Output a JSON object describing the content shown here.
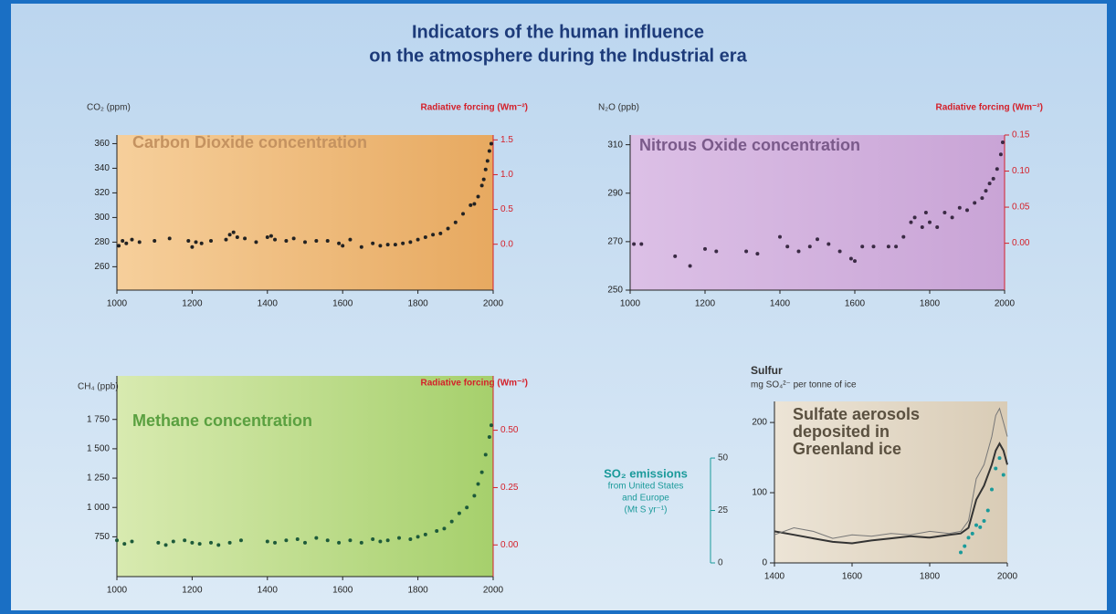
{
  "title": [
    "Indicators of the human influence",
    "on the atmosphere during the Industrial era"
  ],
  "chart_data": [
    {
      "type": "scatter",
      "title": "Carbon Dioxide concentration",
      "y_label": "CO₂ (ppm)",
      "y2_label": "Radiative forcing (Wm⁻²)",
      "x": [
        1005,
        1015,
        1025,
        1040,
        1060,
        1100,
        1140,
        1190,
        1200,
        1210,
        1225,
        1250,
        1290,
        1300,
        1310,
        1320,
        1340,
        1370,
        1400,
        1410,
        1420,
        1450,
        1470,
        1500,
        1530,
        1560,
        1590,
        1600,
        1620,
        1650,
        1680,
        1700,
        1720,
        1740,
        1760,
        1780,
        1800,
        1820,
        1840,
        1860,
        1880,
        1900,
        1920,
        1940,
        1950,
        1960,
        1970,
        1975,
        1980,
        1985,
        1990,
        1995
      ],
      "values": [
        277,
        281,
        279,
        282,
        280,
        281,
        283,
        281,
        276,
        280,
        279,
        281,
        282,
        286,
        288,
        284,
        283,
        280,
        284,
        285,
        282,
        281,
        283,
        280,
        281,
        281,
        279,
        277,
        282,
        276,
        279,
        277,
        278,
        278,
        279,
        280,
        282,
        284,
        286,
        287,
        291,
        296,
        303,
        310,
        311,
        317,
        326,
        331,
        339,
        346,
        354,
        360
      ],
      "color": "#222222",
      "xlim": [
        1000,
        2000
      ],
      "xticks": [
        1000,
        1200,
        1400,
        1600,
        1800,
        2000
      ],
      "ylim": [
        241,
        367
      ],
      "yticks": [
        260,
        280,
        300,
        320,
        340,
        360
      ],
      "y2lim": [
        -0.66,
        1.57
      ],
      "y2ticks": [
        {
          "value": 0,
          "label": "0.0"
        },
        0.5,
        {
          "value": 1,
          "label": "1.0"
        },
        1.5
      ]
    },
    {
      "type": "scatter",
      "title": "Nitrous Oxide concentration",
      "y_label": "N₂O (ppb)",
      "y2_label": "Radiative forcing (Wm⁻²)",
      "x": [
        1010,
        1030,
        1120,
        1160,
        1200,
        1230,
        1310,
        1340,
        1400,
        1420,
        1450,
        1480,
        1500,
        1530,
        1560,
        1590,
        1600,
        1620,
        1650,
        1690,
        1710,
        1730,
        1750,
        1760,
        1780,
        1790,
        1800,
        1820,
        1840,
        1860,
        1880,
        1900,
        1920,
        1940,
        1950,
        1960,
        1970,
        1980,
        1990,
        1995
      ],
      "values": [
        269,
        269,
        264,
        260,
        267,
        266,
        266,
        265,
        272,
        268,
        266,
        268,
        271,
        269,
        266,
        263,
        262,
        268,
        268,
        268,
        268,
        272,
        278,
        280,
        276,
        282,
        278,
        276,
        282,
        280,
        284,
        283,
        286,
        288,
        291,
        294,
        296,
        300,
        306,
        311
      ],
      "color": "#3a2a44",
      "xlim": [
        1000,
        2000
      ],
      "xticks": [
        1000,
        1200,
        1400,
        1600,
        1800,
        2000
      ],
      "ylim": [
        250,
        314
      ],
      "yticks": [
        250,
        270,
        290,
        310
      ],
      "y2lim": [
        -0.065,
        0.15
      ],
      "y2ticks": [
        {
          "value": 0,
          "label": "0.00"
        },
        0.05,
        {
          "value": 0.1,
          "label": "0.10"
        },
        0.15
      ]
    },
    {
      "type": "scatter",
      "title": "Methane concentration",
      "y_label": "CH₄ (ppb)",
      "y2_label": "Radiative forcing (Wm⁻²)",
      "x": [
        1000,
        1020,
        1040,
        1110,
        1130,
        1150,
        1180,
        1200,
        1220,
        1250,
        1270,
        1300,
        1330,
        1400,
        1420,
        1450,
        1480,
        1500,
        1530,
        1560,
        1590,
        1620,
        1650,
        1680,
        1700,
        1720,
        1750,
        1780,
        1800,
        1820,
        1850,
        1870,
        1890,
        1910,
        1930,
        1950,
        1960,
        1970,
        1980,
        1990,
        1995
      ],
      "values": [
        720,
        690,
        710,
        700,
        680,
        710,
        720,
        700,
        690,
        700,
        680,
        700,
        720,
        710,
        700,
        720,
        730,
        700,
        740,
        720,
        700,
        720,
        700,
        730,
        710,
        720,
        740,
        730,
        750,
        770,
        800,
        820,
        880,
        950,
        1000,
        1100,
        1200,
        1300,
        1450,
        1600,
        1700
      ],
      "color": "#1d5a3a",
      "xlim": [
        1000,
        2000
      ],
      "xticks": [
        1000,
        1200,
        1400,
        1600,
        1800,
        2000
      ],
      "ylim": [
        411,
        2121
      ],
      "yticks": [
        {
          "value": 750,
          "label": "750"
        },
        {
          "value": 1000,
          "label": "1 000"
        },
        {
          "value": 1250,
          "label": "1 250"
        },
        {
          "value": 1500,
          "label": "1 500"
        },
        {
          "value": 1750,
          "label": "1 750"
        }
      ],
      "y2lim": [
        -0.138,
        0.737
      ],
      "y2ticks": [
        {
          "value": 0,
          "label": "0.00"
        },
        0.25,
        {
          "value": 0.5,
          "label": "0.50"
        }
      ]
    },
    {
      "type": "line",
      "title": [
        "Sulfate aerosols",
        "deposited in",
        "Greenland ice"
      ],
      "y_label": [
        "Sulfur",
        "mg SO₄²⁻ per tonne of ice"
      ],
      "y2_label": [
        "SO₂ emissions",
        "from United States",
        "and Europe",
        "(Mt S yr⁻¹)"
      ],
      "xlim": [
        1400,
        2000
      ],
      "xticks": [
        1400,
        1600,
        1800,
        2000
      ],
      "ylim": [
        0,
        230
      ],
      "yticks": [
        0,
        100,
        200
      ],
      "y2lim": [
        0,
        77
      ],
      "y2ticks": [
        0,
        25,
        50
      ],
      "series": [
        {
          "x": [
            1400,
            1450,
            1500,
            1550,
            1600,
            1650,
            1700,
            1750,
            1800,
            1850,
            1880,
            1900,
            1920,
            1940,
            1960,
            1970,
            1980,
            1990,
            2000
          ],
          "values": [
            45,
            40,
            35,
            30,
            28,
            32,
            35,
            38,
            36,
            40,
            42,
            50,
            90,
            110,
            140,
            160,
            170,
            160,
            140
          ],
          "color": "#333333"
        },
        {
          "x": [
            1400,
            1450,
            1500,
            1550,
            1600,
            1650,
            1700,
            1750,
            1800,
            1850,
            1880,
            1900,
            1920,
            1940,
            1960,
            1970,
            1980,
            1990,
            2000
          ],
          "values": [
            40,
            50,
            45,
            35,
            40,
            38,
            42,
            40,
            45,
            42,
            45,
            60,
            120,
            140,
            180,
            210,
            220,
            200,
            180
          ],
          "color": "#777777"
        },
        {
          "type": "scatter",
          "axis": "y2",
          "x": [
            1880,
            1890,
            1900,
            1910,
            1920,
            1930,
            1940,
            1950,
            1960,
            1970,
            1980,
            1990
          ],
          "values": [
            5,
            8,
            12,
            14,
            18,
            17,
            20,
            25,
            35,
            45,
            50,
            42
          ],
          "color": "#1a9a9a"
        }
      ]
    }
  ]
}
